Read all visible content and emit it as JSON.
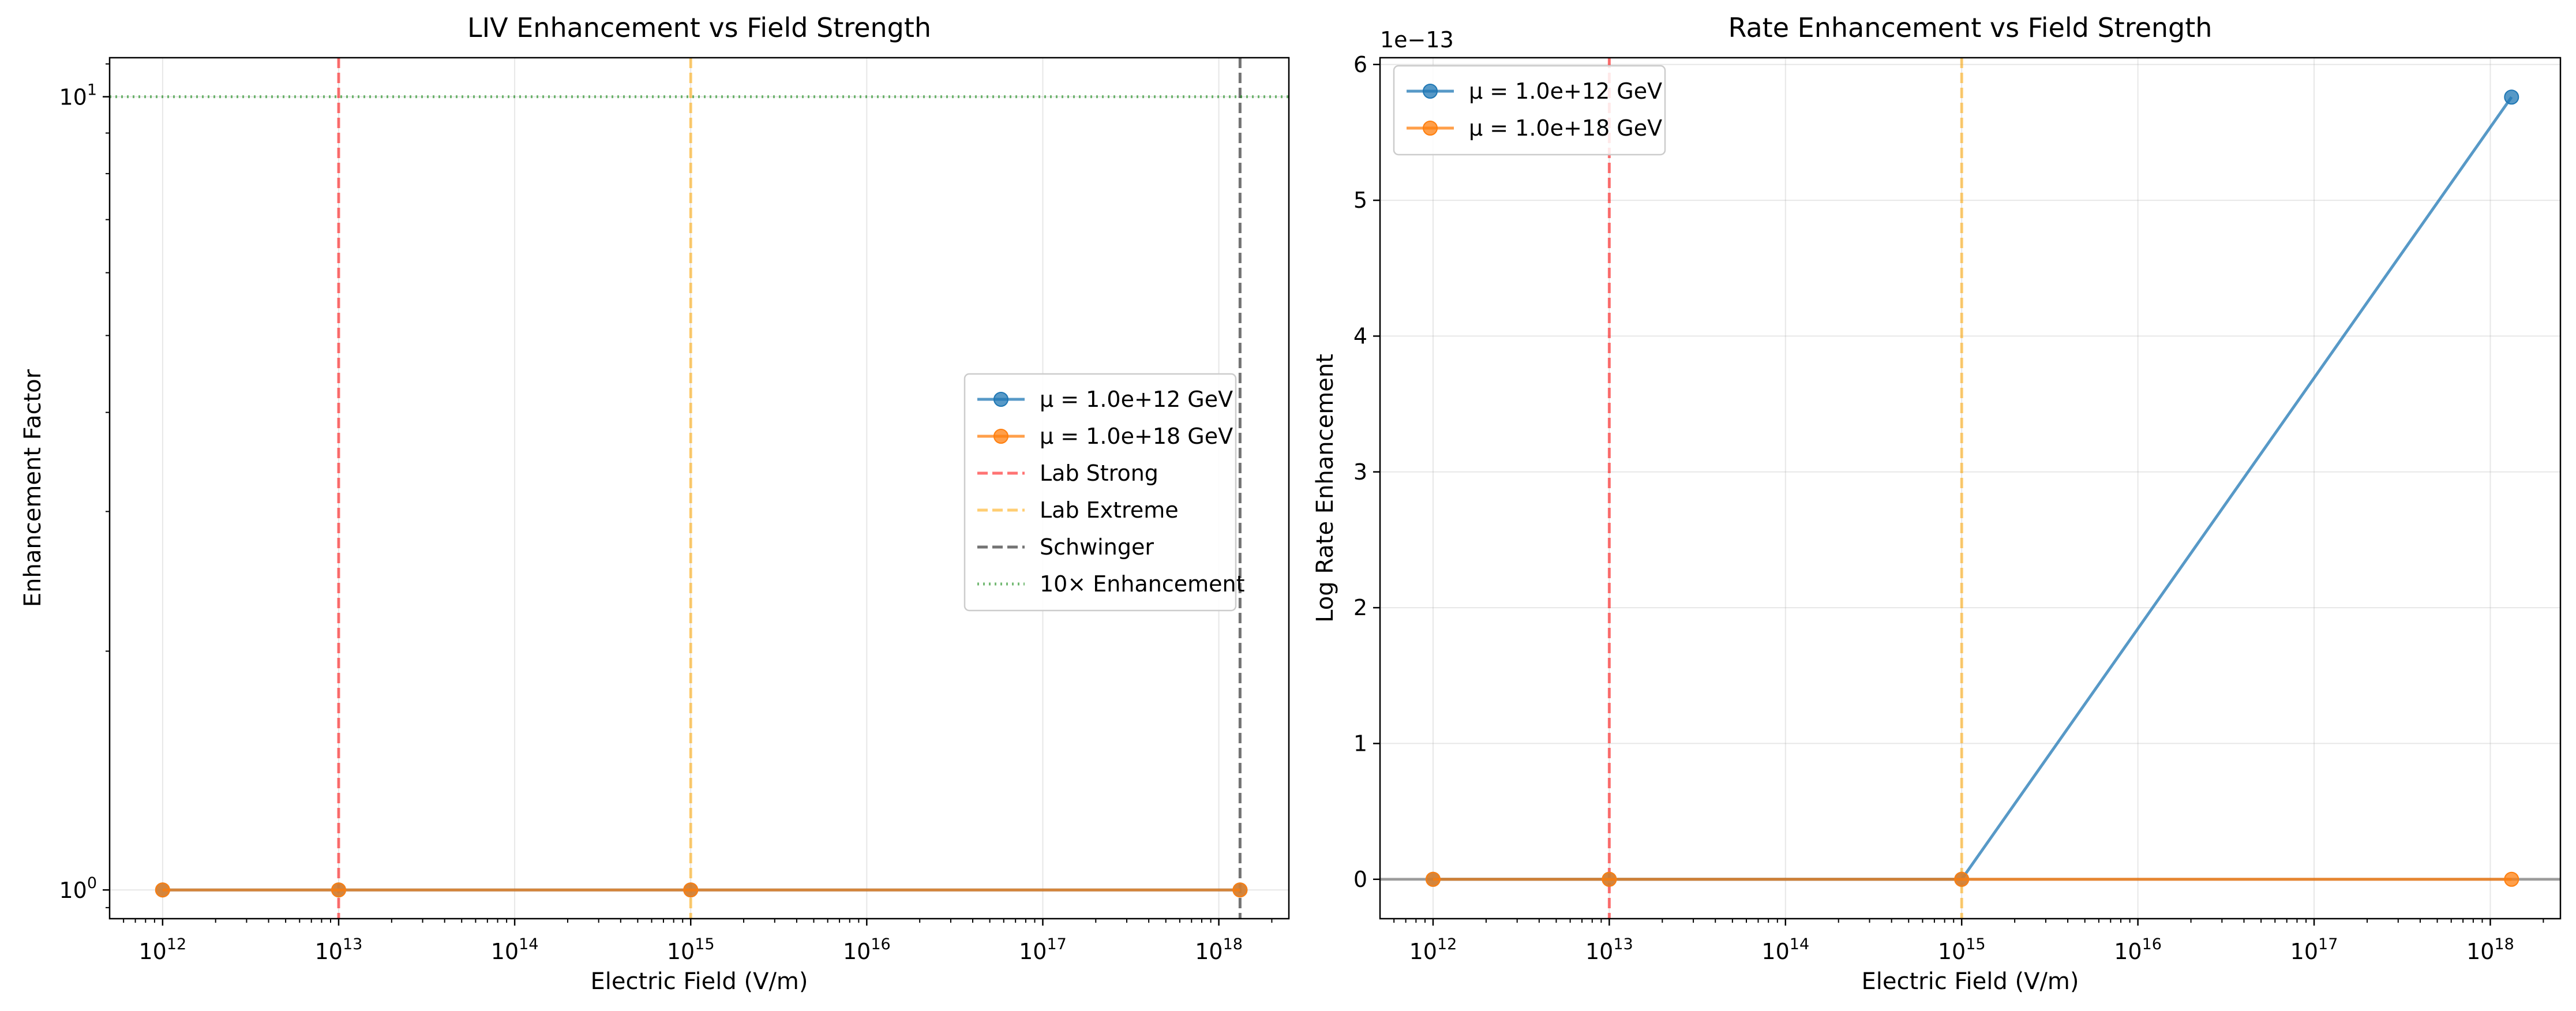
{
  "chart_data": [
    {
      "type": "line",
      "title": "LIV Enhancement vs Field Strength",
      "xlabel": "Electric Field (V/m)",
      "ylabel": "Enhancement Factor",
      "xscale": "log",
      "yscale": "log",
      "xlim": [
        500000000000.0,
        2.5e+18
      ],
      "ylim": [
        0.92,
        11.2
      ],
      "xticks": [
        {
          "value": 1000000000000.0,
          "label": "10",
          "exp": "12"
        },
        {
          "value": 10000000000000.0,
          "label": "10",
          "exp": "13"
        },
        {
          "value": 100000000000000.0,
          "label": "10",
          "exp": "14"
        },
        {
          "value": 1000000000000000.0,
          "label": "10",
          "exp": "15"
        },
        {
          "value": 1e+16,
          "label": "10",
          "exp": "16"
        },
        {
          "value": 1e+17,
          "label": "10",
          "exp": "17"
        },
        {
          "value": 1e+18,
          "label": "10",
          "exp": "18"
        }
      ],
      "yticks": [
        {
          "value": 1,
          "label": "10",
          "exp": "0"
        },
        {
          "value": 10,
          "label": "10",
          "exp": "1"
        }
      ],
      "grid": true,
      "legend_position": "center-right",
      "series": [
        {
          "name": "μ = 1.0e+12 GeV",
          "color": "#1f77b4",
          "x": [
            1000000000000.0,
            10000000000000.0,
            1000000000000000.0,
            1.32e+18
          ],
          "y": [
            1,
            1,
            1,
            1
          ]
        },
        {
          "name": "μ = 1.0e+18 GeV",
          "color": "#ff7f0e",
          "x": [
            1000000000000.0,
            10000000000000.0,
            1000000000000000.0,
            1.32e+18
          ],
          "y": [
            1,
            1,
            1,
            1
          ]
        }
      ],
      "reference_lines": [
        {
          "name": "Lab Strong",
          "orientation": "vertical",
          "value": 10000000000000.0,
          "color": "#ff0000",
          "style": "dashed"
        },
        {
          "name": "Lab Extreme",
          "orientation": "vertical",
          "value": 1000000000000000.0,
          "color": "#ffa500",
          "style": "dashed"
        },
        {
          "name": "Schwinger",
          "orientation": "vertical",
          "value": 1.32e+18,
          "color": "#000000",
          "style": "dashed"
        },
        {
          "name": "10× Enhancement",
          "orientation": "horizontal",
          "value": 10,
          "color": "#008000",
          "style": "dotted"
        }
      ]
    },
    {
      "type": "line",
      "title": "Rate Enhancement vs Field Strength",
      "xlabel": "Electric Field (V/m)",
      "ylabel": "Log Rate Enhancement",
      "offset_text": "1e−13",
      "xscale": "log",
      "yscale": "linear",
      "xlim": [
        500000000000.0,
        2.5e+18
      ],
      "ylim": [
        -0.29,
        6.05
      ],
      "xticks": [
        {
          "value": 1000000000000.0,
          "label": "10",
          "exp": "12"
        },
        {
          "value": 10000000000000.0,
          "label": "10",
          "exp": "13"
        },
        {
          "value": 100000000000000.0,
          "label": "10",
          "exp": "14"
        },
        {
          "value": 1000000000000000.0,
          "label": "10",
          "exp": "15"
        },
        {
          "value": 1e+16,
          "label": "10",
          "exp": "16"
        },
        {
          "value": 1e+17,
          "label": "10",
          "exp": "17"
        },
        {
          "value": 1e+18,
          "label": "10",
          "exp": "18"
        }
      ],
      "yticks": [
        {
          "value": 0,
          "label": "0"
        },
        {
          "value": 1,
          "label": "1"
        },
        {
          "value": 2,
          "label": "2"
        },
        {
          "value": 3,
          "label": "3"
        },
        {
          "value": 4,
          "label": "4"
        },
        {
          "value": 5,
          "label": "5"
        },
        {
          "value": 6,
          "label": "6"
        }
      ],
      "grid": true,
      "legend_position": "top-left",
      "series": [
        {
          "name": "μ = 1.0e+12 GeV",
          "color": "#1f77b4",
          "x": [
            1000000000000.0,
            10000000000000.0,
            1000000000000000.0,
            1.32e+18
          ],
          "y": [
            0,
            0,
            0,
            5.76
          ]
        },
        {
          "name": "μ = 1.0e+18 GeV",
          "color": "#ff7f0e",
          "x": [
            1000000000000.0,
            10000000000000.0,
            1000000000000000.0,
            1.32e+18
          ],
          "y": [
            0,
            0,
            0,
            0
          ]
        }
      ],
      "reference_lines": [
        {
          "orientation": "vertical",
          "value": 10000000000000.0,
          "color": "#ff0000",
          "style": "dashed"
        },
        {
          "orientation": "vertical",
          "value": 1000000000000000.0,
          "color": "#ffa500",
          "style": "dashed"
        },
        {
          "orientation": "horizontal",
          "value": 0,
          "color": "#000000",
          "style": "solid"
        }
      ]
    }
  ]
}
